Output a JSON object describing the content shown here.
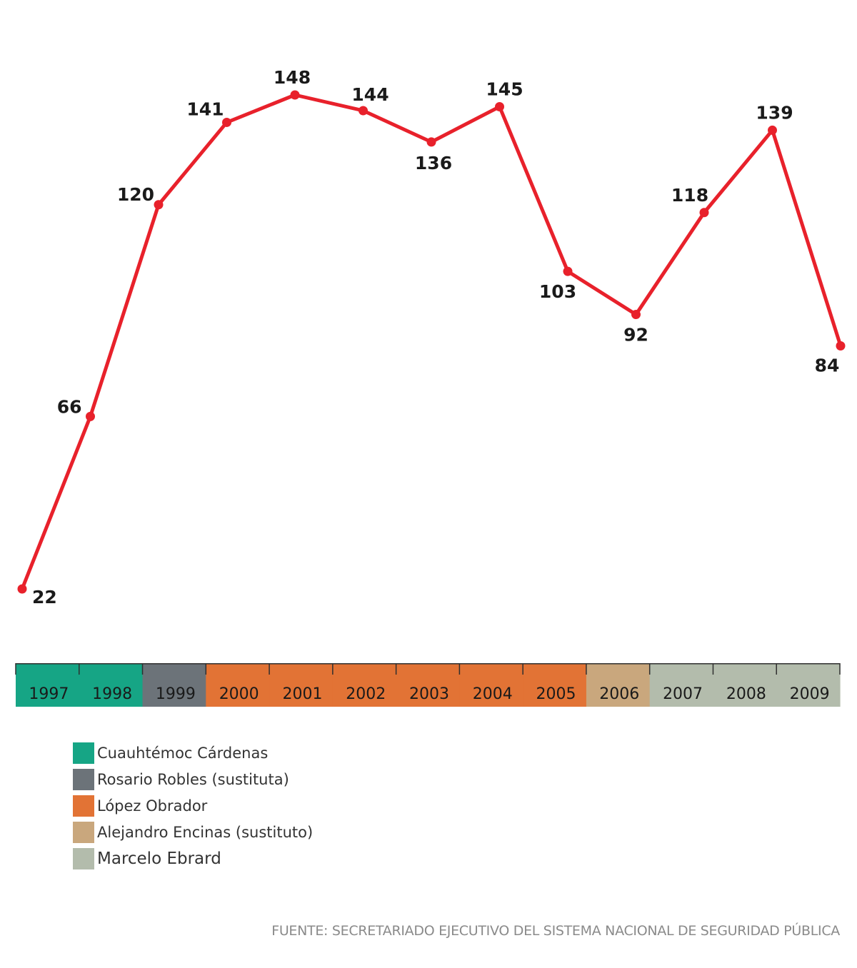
{
  "chart_data": {
    "type": "line",
    "x": [
      "1997",
      "1998",
      "1999",
      "2000",
      "2001",
      "2002",
      "2003",
      "2004",
      "2005",
      "2006",
      "2007",
      "2008",
      "2009"
    ],
    "values": [
      22,
      66,
      120,
      141,
      148,
      144,
      136,
      145,
      103,
      92,
      118,
      139,
      84
    ],
    "data_labels": [
      "22",
      "66",
      "120",
      "141",
      "148",
      "144",
      "136",
      "145",
      "103",
      "92",
      "118",
      "139",
      "84"
    ],
    "line_color": "#e8212b",
    "title": "",
    "xlabel": "",
    "ylabel": "",
    "ylim": [
      0,
      160
    ],
    "grid": false
  },
  "timeline": {
    "years": [
      {
        "label": "1997",
        "period": 0
      },
      {
        "label": "1998",
        "period": 0
      },
      {
        "label": "1999",
        "period": 1
      },
      {
        "label": "2000",
        "period": 2
      },
      {
        "label": "2001",
        "period": 2
      },
      {
        "label": "2002",
        "period": 2
      },
      {
        "label": "2003",
        "period": 2
      },
      {
        "label": "2004",
        "period": 2
      },
      {
        "label": "2005",
        "period": 2
      },
      {
        "label": "2006",
        "period": 3
      },
      {
        "label": "2007",
        "period": 4
      },
      {
        "label": "2008",
        "period": 4
      },
      {
        "label": "2009",
        "period": 4
      }
    ]
  },
  "legend": {
    "items": [
      {
        "label": "Cuauhtémoc Cárdenas",
        "color": "#16a585"
      },
      {
        "label": "Rosario Robles (sustituta)",
        "color": "#6c7379"
      },
      {
        "label": "López Obrador",
        "color": "#e27335"
      },
      {
        "label": "Alejandro Encinas (sustituto)",
        "color": "#c9a77d"
      },
      {
        "label": "Marcelo Ebrard",
        "color": "#b3bcac"
      }
    ]
  },
  "source": "FUENTE: SECRETARIADO EJECUTIVO DEL SISTEMA NACIONAL DE SEGURIDAD PÚBLICA"
}
